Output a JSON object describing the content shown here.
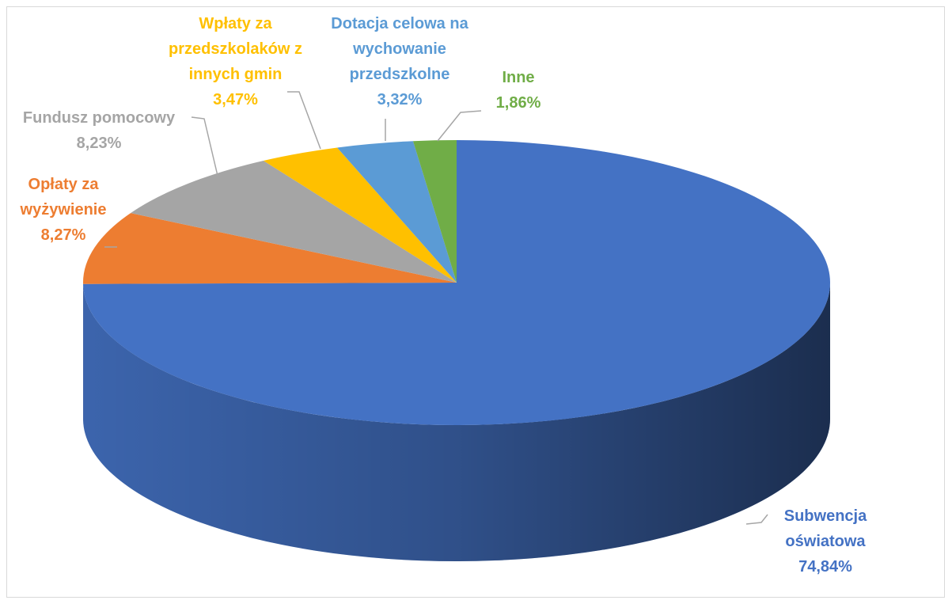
{
  "chart_data": {
    "type": "pie",
    "categories": [
      "Subwencja oświatowa",
      "Opłaty za wyżywienie",
      "Fundusz pomocowy",
      "Wpłaty za przedszkolaków z innych gmin",
      "Dotacja celowa na wychowanie przedszkolne",
      "Inne"
    ],
    "values": [
      74.84,
      8.27,
      8.23,
      3.47,
      3.32,
      1.86
    ],
    "value_labels": [
      "74,84%",
      "8,27%",
      "8,23%",
      "3,47%",
      "3,32%",
      "1,86%"
    ],
    "colors": [
      "#4472c4",
      "#ed7d31",
      "#a5a5a5",
      "#ffc000",
      "#5b9bd5",
      "#70ad47"
    ]
  }
}
